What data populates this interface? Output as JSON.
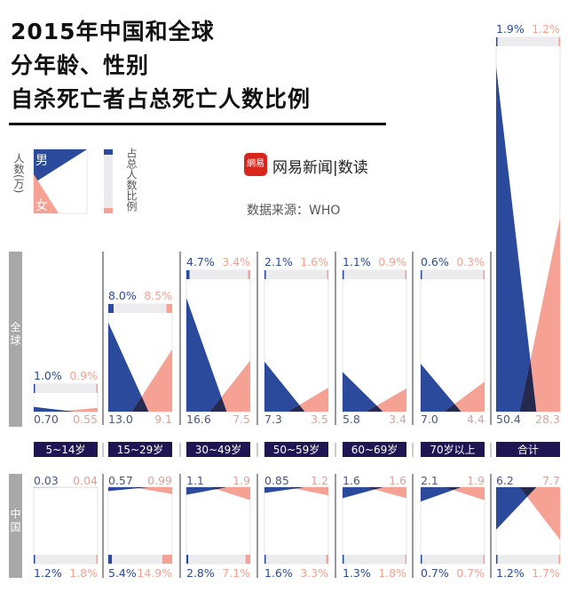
{
  "title": {
    "line1": "2015年中国和全球",
    "line2": "分年龄、性别",
    "line3": "自杀死亡者占总死亡人数比例"
  },
  "legend": {
    "count_label": "人数(万)",
    "male": "男",
    "female": "女",
    "ratio_label": "占总人数比例"
  },
  "brand": {
    "logo_text": "網易",
    "name": "网易新闻|数读"
  },
  "source": "数据来源：WHO",
  "colors": {
    "male": "#2b4a9b",
    "female": "#f5a294",
    "overlap": "#25284f",
    "label_bg": "#1f1552",
    "bar_bg": "#ececee",
    "row_label_bg": "#a8a8a8"
  },
  "chart_data": {
    "type": "triangle-comparison",
    "units": "万人 / %",
    "categories": [
      "5~14岁",
      "15~29岁",
      "30~49岁",
      "50~59岁",
      "60~69岁",
      "70岁以上",
      "合计"
    ],
    "rows": [
      {
        "name": "全球",
        "male_count": [
          "0.70",
          "13.0",
          "16.6",
          "7.3",
          "5.8",
          "7.0",
          "50.4"
        ],
        "female_count": [
          "0.55",
          "9.1",
          "7.5",
          "3.5",
          "3.4",
          "4.4",
          "28.3"
        ],
        "male_pct": [
          "1.0%",
          "8.0%",
          "4.7%",
          "2.1%",
          "1.1%",
          "0.6%",
          "1.9%"
        ],
        "female_pct": [
          "0.9%",
          "8.5%",
          "3.4%",
          "1.6%",
          "0.9%",
          "0.3%",
          "1.2%"
        ]
      },
      {
        "name": "中国",
        "male_count": [
          "0.03",
          "0.57",
          "1.1",
          "0.85",
          "1.6",
          "2.1",
          "6.2"
        ],
        "female_count": [
          "0.04",
          "0.99",
          "1.9",
          "1.2",
          "1.6",
          "1.9",
          "7.7"
        ],
        "male_pct": [
          "1.2%",
          "5.4%",
          "2.8%",
          "1.6%",
          "1.3%",
          "0.7%",
          "1.2%"
        ],
        "female_pct": [
          "1.8%",
          "14.9%",
          "7.1%",
          "3.3%",
          "1.8%",
          "0.7%",
          "1.7%"
        ]
      }
    ]
  }
}
